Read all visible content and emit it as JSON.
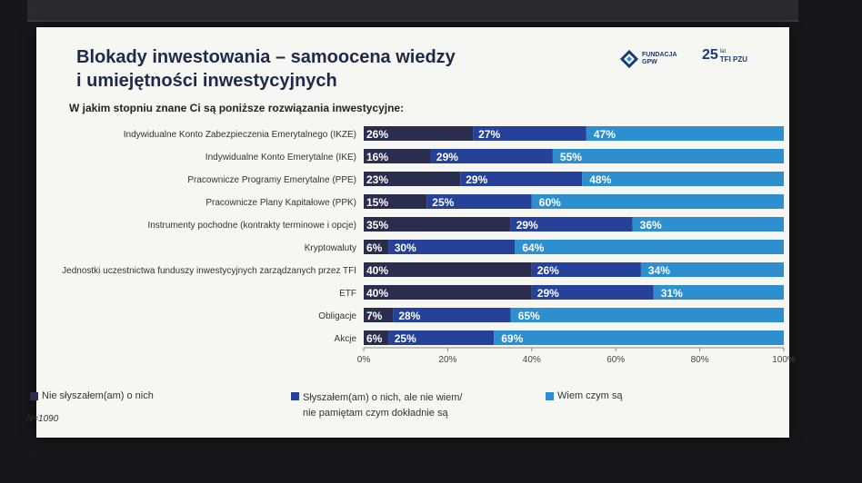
{
  "slide": {
    "title_line1": "Blokady inwestowania – samoocena wiedzy",
    "title_line2": "i umiejętności inwestycyjnych",
    "question": "W jakim stopniu znane Ci są poniższe rozwiązania inwestycyjne:",
    "sample": "N=1090"
  },
  "logos": {
    "gpw_line1": "FUNDACJA",
    "gpw_line2": "GPW",
    "pzu_number": "25",
    "pzu_small": "lat",
    "pzu_brand": "TFI PZU"
  },
  "colors": {
    "dark": "#2a2d4e",
    "mid": "#25419a",
    "light": "#2e8fd0"
  },
  "chart_data": {
    "type": "bar",
    "orientation": "horizontal",
    "stacked": true,
    "categories": [
      "Indywidualne Konto Zabezpieczenia Emerytalnego (IKZE)",
      "Indywidualne Konto Emerytalne (IKE)",
      "Pracownicze Programy Emerytalne (PPE)",
      "Pracownicze Plany Kapitałowe (PPK)",
      "Instrumenty pochodne (kontrakty terminowe i opcje)",
      "Kryptowaluty",
      "Jednostki uczestnictwa funduszy inwestycyjnych zarządzanych przez TFI",
      "ETF",
      "Obligacje",
      "Akcje"
    ],
    "series": [
      {
        "name": "Nie słyszałem(am) o nich",
        "values": [
          26,
          16,
          23,
          15,
          35,
          6,
          40,
          40,
          7,
          6
        ],
        "labels": [
          "26%",
          "16%",
          "23%",
          "15%",
          "35%",
          "6%",
          "40%",
          "40%",
          "7%",
          "6%"
        ]
      },
      {
        "name_line1": "Słyszałem(am) o nich, ale nie wiem/",
        "name_line2": "nie pamiętam czym dokładnie są",
        "values": [
          27,
          29,
          29,
          25,
          29,
          30,
          26,
          29,
          28,
          25
        ],
        "labels": [
          "27%",
          "29%",
          "29%",
          "25%",
          "29%",
          "30%",
          "26%",
          "29%",
          "28%",
          "25%"
        ]
      },
      {
        "name": "Wiem czym są",
        "values": [
          47,
          55,
          48,
          60,
          36,
          64,
          34,
          31,
          65,
          69
        ],
        "labels": [
          "47%",
          "55%",
          "48%",
          "60%",
          "36%",
          "64%",
          "34%",
          "31%",
          "65%",
          "69%"
        ]
      }
    ],
    "xlim": [
      0,
      100
    ],
    "xticks": [
      0,
      20,
      40,
      60,
      80,
      100
    ],
    "xtick_labels": [
      "0%",
      "20%",
      "40%",
      "60%",
      "80%",
      "100%"
    ],
    "legend_position": "bottom"
  }
}
